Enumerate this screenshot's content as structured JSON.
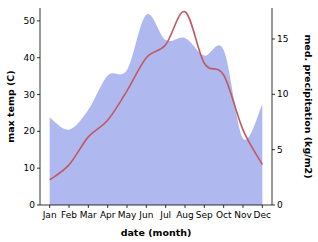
{
  "chart_data": {
    "type": "line",
    "x_label": "date (month)",
    "y_label": "max temp (C)",
    "y2_label": "med. precipitation (kg/m2)",
    "categories": [
      "Jan",
      "Feb",
      "Mar",
      "Apr",
      "May",
      "Jun",
      "Jul",
      "Aug",
      "Sep",
      "Oct",
      "Nov",
      "Dec"
    ],
    "ylim": [
      0,
      53.5
    ],
    "yticks": [
      0,
      10,
      20,
      30,
      40,
      50
    ],
    "y2lim": [
      0,
      17.8
    ],
    "y2ticks": [
      0,
      5,
      10,
      15
    ],
    "series": [
      {
        "type": "area",
        "axis": "y2",
        "color": "#b0b8f0",
        "values": [
          7.9,
          6.8,
          8.6,
          11.7,
          12.2,
          17.2,
          14.9,
          15.1,
          13.5,
          14.0,
          6.0,
          9.1
        ]
      },
      {
        "type": "line",
        "color": "#c05a63",
        "values": [
          6.8,
          10.9,
          18.5,
          23.0,
          31.0,
          40.0,
          43.5,
          52.5,
          38.5,
          35.3,
          20.4,
          11.0
        ]
      }
    ]
  }
}
